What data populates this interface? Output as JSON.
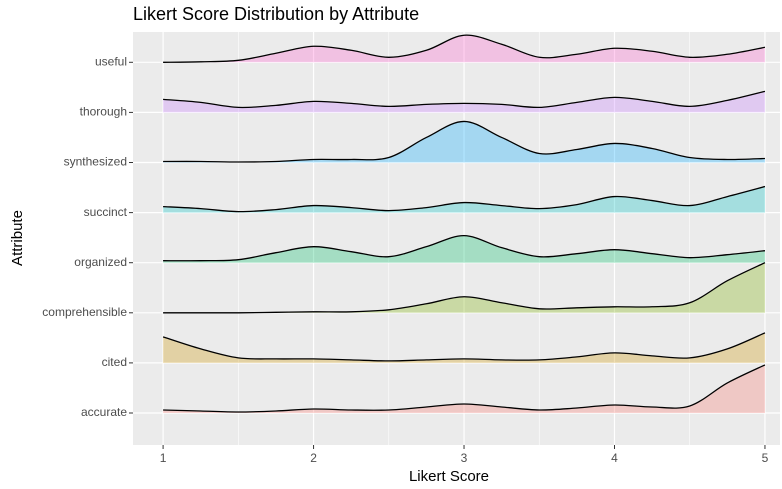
{
  "chart_data": {
    "type": "ridgeline",
    "title": "Likert Score Distribution by Attribute",
    "x_label": "Likert Score",
    "y_label": "Attribute",
    "x": [
      1,
      1.25,
      1.5,
      1.75,
      2,
      2.25,
      2.5,
      2.75,
      3,
      3.25,
      3.5,
      3.75,
      4,
      4.25,
      4.5,
      4.75,
      5
    ],
    "xlim": [
      0.8,
      5.1
    ],
    "xticks": [
      1,
      2,
      3,
      4,
      5
    ],
    "minor_xticks": [
      1.5,
      2.5,
      3.5,
      4.5
    ],
    "grid": true,
    "fill_opacity": 0.3,
    "series": [
      {
        "name": "accurate",
        "color": "#F8766D",
        "values": [
          0.06,
          0.04,
          0.02,
          0.04,
          0.08,
          0.06,
          0.06,
          0.12,
          0.18,
          0.12,
          0.06,
          0.1,
          0.16,
          0.12,
          0.14,
          0.6,
          0.96
        ]
      },
      {
        "name": "cited",
        "color": "#CD9600",
        "values": [
          0.52,
          0.28,
          0.1,
          0.08,
          0.08,
          0.06,
          0.04,
          0.06,
          0.08,
          0.06,
          0.06,
          0.12,
          0.2,
          0.14,
          0.1,
          0.28,
          0.6
        ]
      },
      {
        "name": "comprehensible",
        "color": "#7CAE00",
        "values": [
          0,
          0,
          0,
          0.01,
          0.02,
          0.02,
          0.06,
          0.18,
          0.32,
          0.2,
          0.08,
          0.1,
          0.12,
          0.12,
          0.2,
          0.64,
          1
        ]
      },
      {
        "name": "organized",
        "color": "#00BE67",
        "values": [
          0.04,
          0.04,
          0.06,
          0.2,
          0.32,
          0.22,
          0.12,
          0.32,
          0.54,
          0.3,
          0.12,
          0.18,
          0.26,
          0.18,
          0.1,
          0.16,
          0.24
        ]
      },
      {
        "name": "succinct",
        "color": "#00BFC4",
        "values": [
          0.12,
          0.08,
          0.02,
          0.06,
          0.14,
          0.1,
          0.04,
          0.1,
          0.2,
          0.14,
          0.08,
          0.16,
          0.32,
          0.24,
          0.14,
          0.32,
          0.52
        ]
      },
      {
        "name": "synthesized",
        "color": "#00A9FF",
        "values": [
          0.02,
          0.02,
          0.01,
          0.02,
          0.06,
          0.06,
          0.1,
          0.5,
          0.82,
          0.5,
          0.18,
          0.26,
          0.38,
          0.28,
          0.1,
          0.06,
          0.08
        ]
      },
      {
        "name": "thorough",
        "color": "#C77CFF",
        "values": [
          0.26,
          0.2,
          0.1,
          0.14,
          0.22,
          0.18,
          0.12,
          0.16,
          0.18,
          0.16,
          0.1,
          0.2,
          0.3,
          0.22,
          0.12,
          0.24,
          0.42
        ]
      },
      {
        "name": "useful",
        "color": "#FF61CC",
        "values": [
          0,
          0.01,
          0.04,
          0.18,
          0.32,
          0.24,
          0.1,
          0.24,
          0.54,
          0.36,
          0.1,
          0.16,
          0.28,
          0.22,
          0.1,
          0.16,
          0.3
        ]
      }
    ]
  }
}
